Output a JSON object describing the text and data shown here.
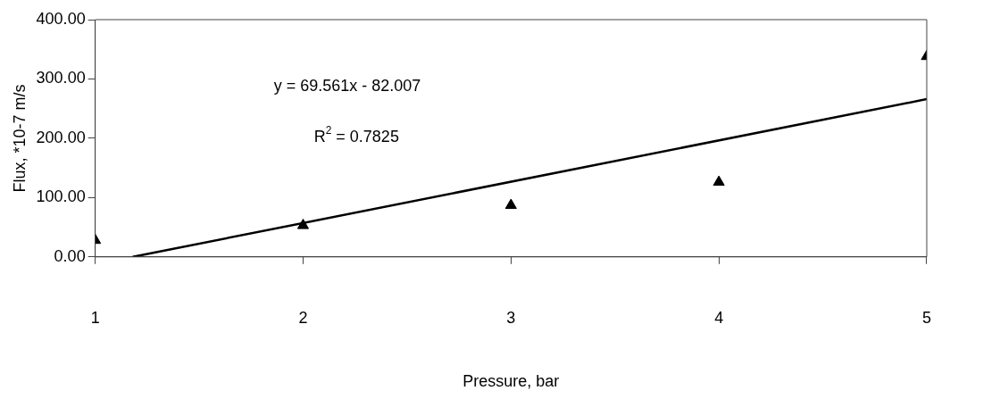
{
  "chart_data": {
    "type": "scatter",
    "xlabel": "Pressure, bar",
    "ylabel": "Flux, *10-7 m/s",
    "x": [
      1,
      2,
      3,
      4,
      5
    ],
    "series": [
      {
        "color": "#000000",
        "marker": "triangle",
        "values": [
          28,
          53,
          87,
          126,
          338
        ]
      },
      {
        "type": "line",
        "color": "#000000",
        "marker": "none",
        "line_style": "solid",
        "x": [
          1.18,
          5
        ],
        "values": [
          0,
          266
        ]
      }
    ],
    "xlim": [
      1,
      5
    ],
    "xticks": [
      1,
      2,
      3,
      4,
      5
    ],
    "ylim": [
      0,
      400
    ],
    "yticks": [
      {
        "value": 0,
        "label": "0.00"
      },
      {
        "value": 100,
        "label": "100.00"
      },
      {
        "value": 200,
        "label": "200.00"
      },
      {
        "value": 300,
        "label": "300.00"
      },
      {
        "value": 400,
        "label": "400.00"
      }
    ],
    "annotations": [
      "y = 69.561x - 82.007",
      "R$^{2}$ = 0.7825"
    ],
    "grid": false,
    "legend": false
  }
}
